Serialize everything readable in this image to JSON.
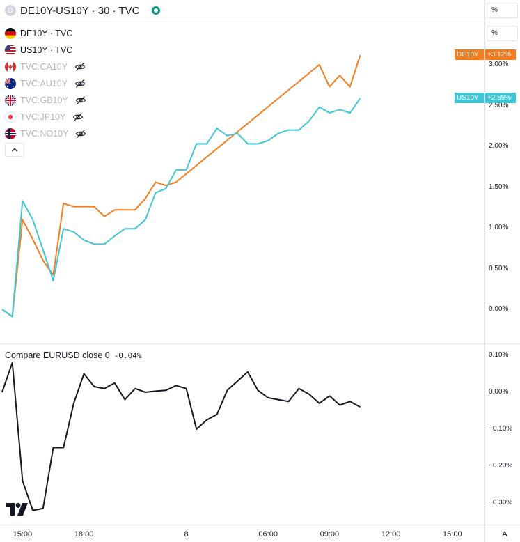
{
  "header": {
    "badge": "D",
    "title": "DE10Y-US10Y · 30 · TVC",
    "status_color": "#089981"
  },
  "scale_mode": {
    "top": "%",
    "main": "%"
  },
  "legend": [
    {
      "label": "DE10Y · TVC",
      "flag": "de",
      "hidden": false
    },
    {
      "label": "US10Y · TVC",
      "flag": "us",
      "hidden": false
    },
    {
      "label": "TVC:CA10Y",
      "flag": "ca",
      "hidden": true
    },
    {
      "label": "TVC:AU10Y",
      "flag": "au",
      "hidden": true
    },
    {
      "label": "TVC:GB10Y",
      "flag": "gb",
      "hidden": true
    },
    {
      "label": "TVC:JP10Y",
      "flag": "jp",
      "hidden": true
    },
    {
      "label": "TVC:NO10Y",
      "flag": "no",
      "hidden": true
    }
  ],
  "colors": {
    "de10y": "#f57c1f",
    "us10y": "#3ec6d6",
    "eurusd": "#131722",
    "grid": "#e0e3eb"
  },
  "tags": {
    "de": {
      "name": "DE10Y",
      "value": "+3.12%"
    },
    "us": {
      "name": "US10Y",
      "value": "+2.59%"
    }
  },
  "oscillator": {
    "label": "Compare EURUSD close 0",
    "value": "-0.04%"
  },
  "time_axis": {
    "auto_label": "A",
    "ticks": [
      {
        "label": "15:00",
        "idx": 2
      },
      {
        "label": "18:00",
        "idx": 8
      },
      {
        "label": "8",
        "idx": 18
      },
      {
        "label": "06:00",
        "idx": 26
      },
      {
        "label": "09:00",
        "idx": 32
      },
      {
        "label": "12:00",
        "idx": 38
      },
      {
        "label": "15:00",
        "idx": 44
      }
    ]
  },
  "chart_data": [
    {
      "type": "line",
      "title": "DE10Y-US10Y · 30 · TVC",
      "ylim": [
        -0.45,
        3.45
      ],
      "y_ticks": [
        {
          "v": 3.0,
          "label": "3.00%"
        },
        {
          "v": 2.5,
          "label": "2.50%"
        },
        {
          "v": 2.0,
          "label": "2.00%"
        },
        {
          "v": 1.5,
          "label": "1.50%"
        },
        {
          "v": 1.0,
          "label": "1.00%"
        },
        {
          "v": 0.5,
          "label": "0.50%"
        },
        {
          "v": 0.0,
          "label": "0.00%"
        }
      ],
      "series": [
        {
          "name": "DE10Y",
          "x": [
            0,
            1,
            2,
            3,
            4,
            5,
            6,
            7,
            8,
            9,
            10,
            11,
            12,
            13,
            14,
            15,
            16,
            17,
            31,
            32,
            33,
            34,
            35
          ],
          "values": [
            0.0,
            -0.09,
            1.1,
            0.86,
            0.6,
            0.42,
            1.3,
            1.26,
            1.26,
            1.26,
            1.14,
            1.22,
            1.22,
            1.22,
            1.36,
            1.56,
            1.52,
            1.56,
            3.0,
            2.73,
            2.87,
            2.73,
            3.12
          ]
        },
        {
          "name": "US10Y",
          "x": [
            0,
            1,
            2,
            3,
            4,
            5,
            6,
            7,
            8,
            9,
            10,
            11,
            12,
            13,
            14,
            15,
            16,
            17,
            18,
            19,
            20,
            21,
            22,
            23,
            24,
            25,
            26,
            27,
            28,
            29,
            30,
            31,
            32,
            33,
            34,
            35
          ],
          "values": [
            0.0,
            -0.09,
            1.33,
            1.1,
            0.73,
            0.35,
            0.99,
            0.95,
            0.85,
            0.8,
            0.8,
            0.9,
            0.99,
            0.99,
            1.1,
            1.43,
            1.48,
            1.71,
            1.71,
            2.03,
            2.03,
            2.22,
            2.13,
            2.16,
            2.03,
            2.03,
            2.07,
            2.16,
            2.2,
            2.2,
            2.31,
            2.48,
            2.41,
            2.45,
            2.41,
            2.59
          ]
        }
      ]
    },
    {
      "type": "line",
      "title": "Compare EURUSD close 0",
      "ylim": [
        -0.345,
        0.11
      ],
      "y_ticks": [
        {
          "v": 0.1,
          "label": "0.10%"
        },
        {
          "v": 0.0,
          "label": "0.00%"
        },
        {
          "v": -0.1,
          "label": "−0.10%"
        },
        {
          "v": -0.2,
          "label": "−0.20%"
        },
        {
          "v": -0.3,
          "label": "−0.30%"
        }
      ],
      "series": [
        {
          "name": "EURUSD",
          "x": [
            0,
            1,
            2,
            3,
            4,
            5,
            6,
            7,
            8,
            9,
            10,
            11,
            12,
            13,
            14,
            15,
            16,
            17,
            18,
            19,
            20,
            21,
            22,
            23,
            24,
            25,
            26,
            27,
            28,
            29,
            30,
            31,
            32,
            33,
            34,
            35
          ],
          "values": [
            0.0,
            0.08,
            -0.24,
            -0.32,
            -0.315,
            -0.15,
            -0.15,
            -0.03,
            0.05,
            0.015,
            0.01,
            0.025,
            -0.02,
            0.01,
            0.0,
            0.003,
            0.005,
            0.018,
            0.01,
            -0.1,
            -0.075,
            -0.06,
            0.005,
            0.03,
            0.055,
            0.005,
            -0.015,
            -0.02,
            -0.025,
            0.01,
            -0.005,
            -0.03,
            -0.01,
            -0.035,
            -0.025,
            -0.04
          ]
        }
      ]
    }
  ]
}
